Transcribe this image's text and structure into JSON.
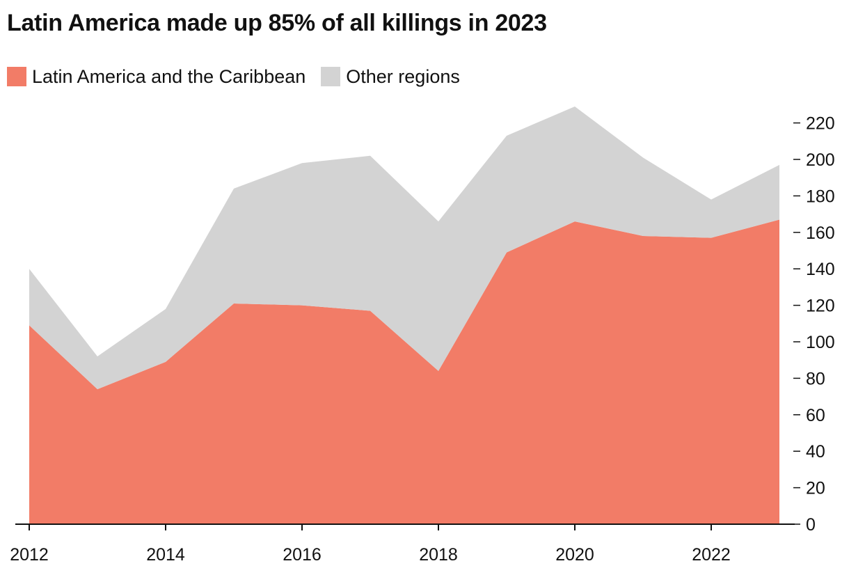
{
  "chart_data": {
    "type": "area",
    "stacked": true,
    "title": "Latin America made up 85% of all killings in 2023",
    "x": [
      2012,
      2013,
      2014,
      2015,
      2016,
      2017,
      2018,
      2019,
      2020,
      2021,
      2022,
      2023
    ],
    "x_tick_labels": [
      "2012",
      "2014",
      "2016",
      "2018",
      "2020",
      "2022"
    ],
    "y_tick_labels": [
      "0",
      "20",
      "40",
      "60",
      "80",
      "100",
      "120",
      "140",
      "160",
      "180",
      "200",
      "220"
    ],
    "ylim": [
      0,
      230
    ],
    "y_axis_side": "right",
    "legend_placement": "top-left",
    "grid": false,
    "series": [
      {
        "name": "Latin America and the Caribbean",
        "color": "#f27c67",
        "values": [
          109,
          74,
          89,
          121,
          120,
          117,
          84,
          149,
          166,
          158,
          157,
          167
        ]
      },
      {
        "name": "Other regions",
        "color": "#d3d3d3",
        "values": [
          31,
          18,
          29,
          63,
          78,
          85,
          82,
          64,
          63,
          43,
          21,
          30
        ]
      }
    ]
  }
}
